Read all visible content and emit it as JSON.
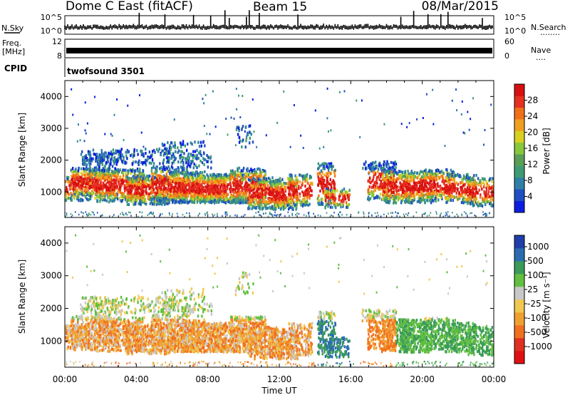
{
  "header": {
    "station": "Dome C East (fitACF)",
    "beam": "Beam 15",
    "date": "08/Mar/2015"
  },
  "side_labels": {
    "nsky": "N.Sky",
    "nsky_ticks": [
      "10^5",
      "10^0"
    ],
    "freq_line1": "Freq.",
    "freq_line2": "[MHz]",
    "freq_ticks": [
      "12",
      "8"
    ],
    "cpid": "CPID",
    "nsearch": "N.Search",
    "nsearch_dots": "........",
    "nsearch_ticks": [
      "10^5",
      "10^0"
    ],
    "nave": "Nave",
    "nave_dots": "....",
    "nave_ticks": [
      "60",
      "0"
    ],
    "cpid_value": "twofsound  3501"
  },
  "chart_data": [
    {
      "type": "heatmap",
      "panel": "power",
      "ylabel": "Slant Range [km]",
      "xlabel": "",
      "ylim": [
        200,
        4500
      ],
      "yticks": [
        1000,
        2000,
        3000,
        4000
      ],
      "x_range_hours": [
        0,
        24
      ],
      "colorbar_label": "Power [dB]",
      "colorbar_ticks": [
        4,
        8,
        12,
        16,
        20,
        24,
        28
      ],
      "colorbar_range": [
        0,
        32
      ],
      "colorbar_colors": [
        "#0b1ee0",
        "#1f4fc0",
        "#2f7fa8",
        "#3f9a74",
        "#5a9e58",
        "#86c83a",
        "#d8d020",
        "#f0a020",
        "#f07018",
        "#e63020",
        "#d81010"
      ]
    },
    {
      "type": "heatmap",
      "panel": "velocity",
      "ylabel": "Slant Range [km]",
      "xlabel": "Time UT",
      "ylim": [
        200,
        4500
      ],
      "yticks": [
        1000,
        2000,
        3000,
        4000
      ],
      "x_range_hours": [
        0,
        24
      ],
      "xticks": [
        "00:00",
        "04:00",
        "08:00",
        "12:00",
        "16:00",
        "20:00",
        "00:00"
      ],
      "colorbar_label": "Velocity [m s⁻¹]",
      "colorbar_ticks": [
        "1000",
        "500",
        "100",
        "25",
        "-25",
        "-100",
        "-500",
        "-1000"
      ],
      "colorbar_colors": [
        "#1f3ea8",
        "#2a6cb0",
        "#3a9a5a",
        "#62c040",
        "#c8c8c8",
        "#f0c850",
        "#f0a030",
        "#f07020",
        "#e03020",
        "#e01010"
      ]
    }
  ]
}
